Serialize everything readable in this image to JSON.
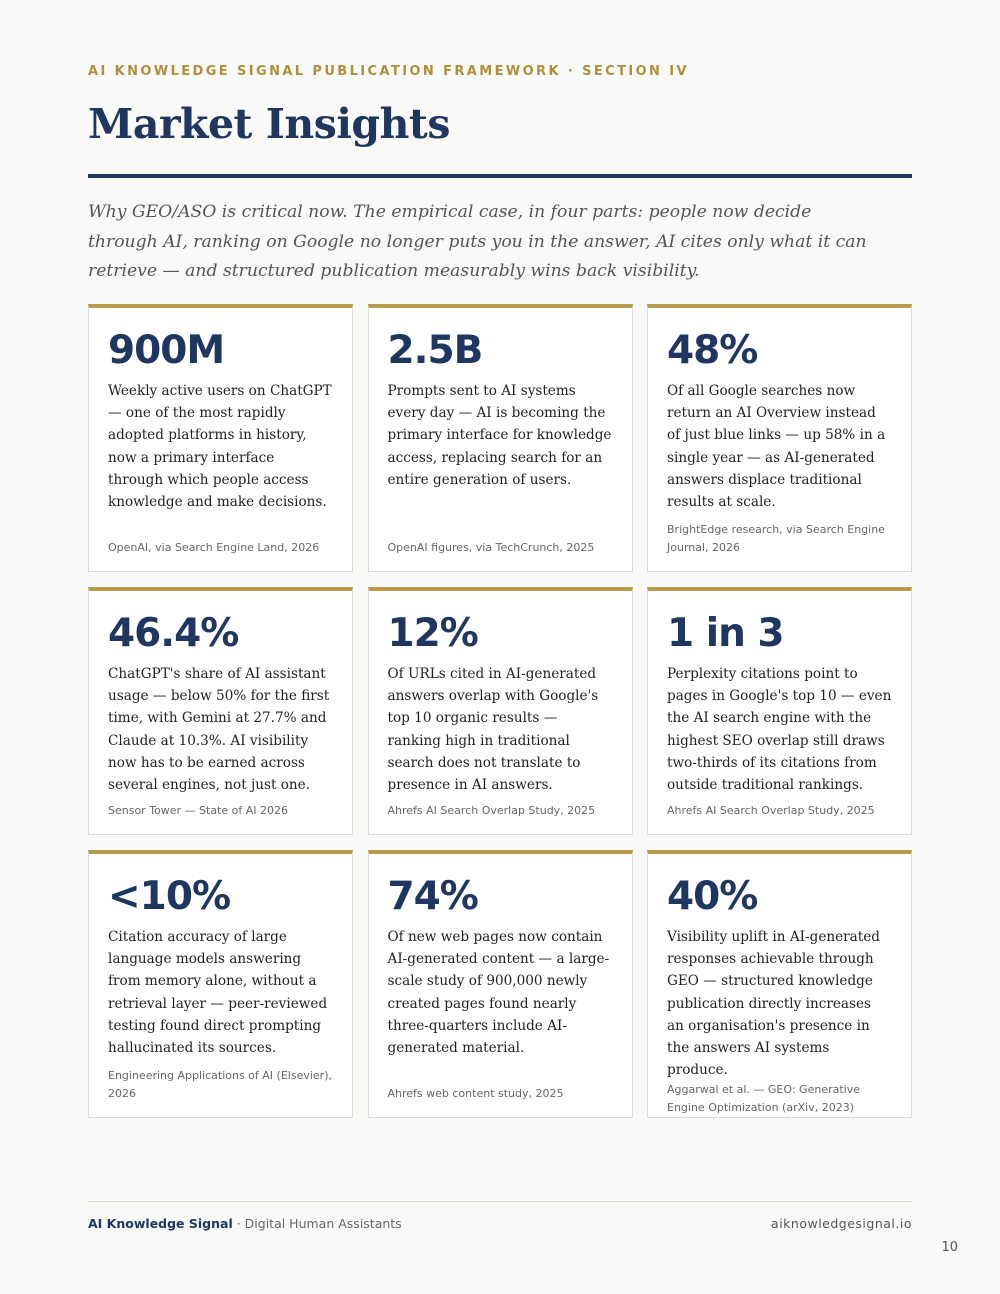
{
  "header": {
    "eyebrow": "AI KNOWLEDGE SIGNAL PUBLICATION FRAMEWORK · SECTION IV",
    "title": "Market Insights",
    "intro": "Why GEO/ASO is critical now. The empirical case, in four parts: people now decide through AI, ranking on Google no longer puts you in the answer, AI cites only what it can retrieve — and structured publication measurably wins back visibility."
  },
  "cards": [
    {
      "value": "900M",
      "text": "Weekly active users on ChatGPT — one of the most rapidly adopted platforms in history, now a primary interface through which people access knowledge and make decisions.",
      "source": "OpenAI, via Search Engine Land, 2026"
    },
    {
      "value": "2.5B",
      "text": "Prompts sent to AI systems every day — AI is becoming the primary interface for knowledge access, replacing search for an entire generation of users.",
      "source": "OpenAI figures, via TechCrunch, 2025"
    },
    {
      "value": "48%",
      "text": "Of all Google searches now return an AI Overview instead of just blue links — up 58% in a single year — as AI-generated answers displace traditional results at scale.",
      "source": "BrightEdge research, via Search Engine Journal, 2026"
    },
    {
      "value": "46.4%",
      "text": "ChatGPT's share of AI assistant usage — below 50% for the first time, with Gemini at 27.7% and Claude at 10.3%. AI visibility now has to be earned across several engines, not just one.",
      "source": "Sensor Tower — State of AI 2026"
    },
    {
      "value": "12%",
      "text": "Of URLs cited in AI-generated answers overlap with Google's top 10 organic results — ranking high in traditional search does not translate to presence in AI answers.",
      "source": "Ahrefs AI Search Overlap Study, 2025"
    },
    {
      "value": "1 in 3",
      "text": "Perplexity citations point to pages in Google's top 10 — even the AI search engine with the highest SEO overlap still draws two-thirds of its citations from outside traditional rankings.",
      "source": "Ahrefs AI Search Overlap Study, 2025"
    },
    {
      "value": "<10%",
      "text": "Citation accuracy of large language models answering from memory alone, without a retrieval layer — peer-reviewed testing found direct prompting hallucinated its sources.",
      "source": "Engineering Applications of AI (Elsevier), 2026"
    },
    {
      "value": "74%",
      "text": "Of new web pages now contain AI-generated content — a large-scale study of 900,000 newly created pages found nearly three-quarters include AI-generated material.",
      "source": "Ahrefs web content study, 2025"
    },
    {
      "value": "40%",
      "text": "Visibility uplift in AI-generated responses achievable through GEO — structured knowledge publication directly increases an organisation's presence in the answers AI systems produce.",
      "source": "Aggarwal et al. — GEO: Generative Engine Optimization (arXiv, 2023)"
    }
  ],
  "footer": {
    "brand": "AI Knowledge Signal",
    "separator": " · ",
    "tagline": "Digital Human Assistants",
    "url": "aiknowledgesignal.io",
    "page_number": "10"
  }
}
